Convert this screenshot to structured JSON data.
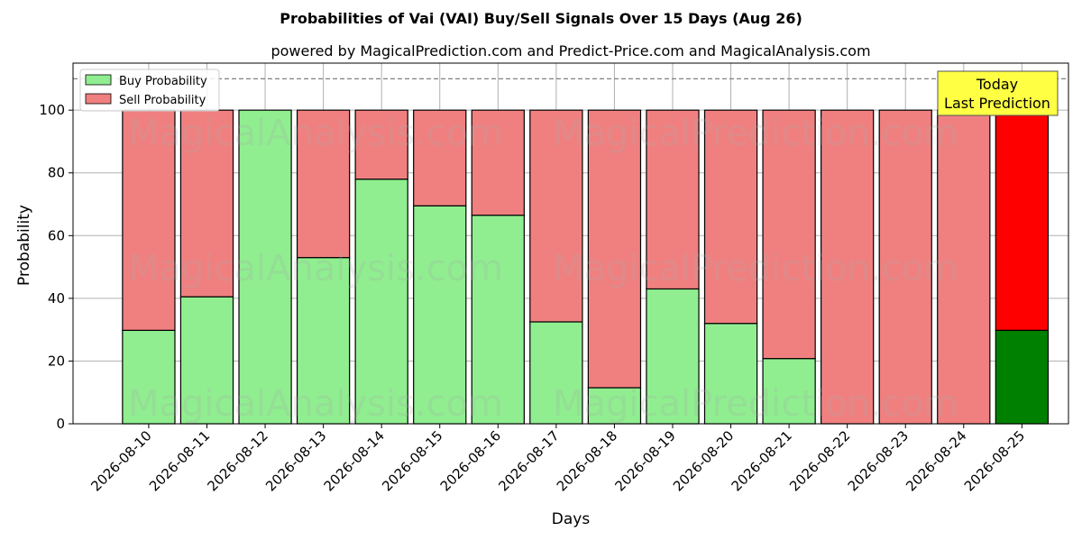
{
  "chart_data": {
    "type": "bar",
    "stacked": true,
    "title": "Probabilities of Vai (VAI) Buy/Sell Signals Over 15 Days (Aug 26)",
    "subtitle": "powered by MagicalPrediction.com and Predict-Price.com and MagicalAnalysis.com",
    "xlabel": "Days",
    "ylabel": "Probability",
    "ylim": [
      0,
      115
    ],
    "yticks": [
      0,
      20,
      40,
      60,
      80,
      100
    ],
    "reference_line": 110,
    "grid": true,
    "legend_placement": "top-left",
    "categories": [
      "2026-08-10",
      "2026-08-11",
      "2026-08-12",
      "2026-08-13",
      "2026-08-14",
      "2026-08-15",
      "2026-08-16",
      "2026-08-17",
      "2026-08-18",
      "2026-08-19",
      "2026-08-20",
      "2026-08-21",
      "2026-08-22",
      "2026-08-23",
      "2026-08-24",
      "2026-08-25"
    ],
    "series": [
      {
        "name": "Buy Probability",
        "color": "#90ee90",
        "highlight_color": "#008000",
        "values": [
          29.8,
          40.5,
          100,
          53,
          78,
          69.5,
          66.5,
          32.5,
          11.5,
          43,
          32,
          20.8,
          0,
          0,
          0,
          29.8
        ]
      },
      {
        "name": "Sell Probability",
        "color": "#f08080",
        "highlight_color": "#ff0000",
        "values": [
          70.2,
          59.5,
          0,
          47,
          22,
          30.5,
          33.5,
          67.5,
          88.5,
          57,
          68,
          79.2,
          100,
          100,
          100,
          70.2
        ]
      }
    ],
    "highlight_index": 15,
    "annotation": {
      "line1": "Today",
      "line2": "Last Prediction",
      "background": "#ffff44"
    },
    "watermarks": [
      "MagicalAnalysis.com",
      "MagicalPrediction.com"
    ]
  }
}
